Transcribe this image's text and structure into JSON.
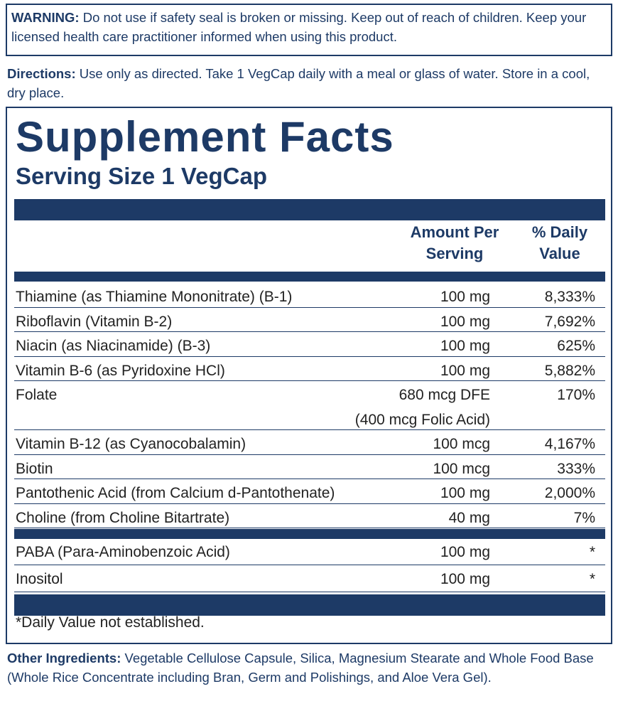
{
  "warning": {
    "label": "WARNING:",
    "text": "Do not use if safety seal is broken or missing. Keep out of reach of children. Keep your licensed health care practitioner informed when using this product."
  },
  "directions": {
    "label": "Directions:",
    "text": "Use only as directed. Take 1 VegCap daily with a meal or glass of water. Store in a cool, dry place."
  },
  "facts": {
    "title": "Supplement Facts",
    "serving_size": "Serving Size 1 VegCap",
    "headers": {
      "amount": "Amount Per Serving",
      "daily_value": "% Daily Value"
    },
    "rows": [
      {
        "name": "Thiamine (as Thiamine Mononitrate) (B-1)",
        "amount": "100 mg",
        "daily_value": "8,333%"
      },
      {
        "name": "Riboflavin (Vitamin B-2)",
        "amount": "100 mg",
        "daily_value": "7,692%"
      },
      {
        "name": "Niacin (as Niacinamide) (B-3)",
        "amount": "100 mg",
        "daily_value": "625%"
      },
      {
        "name": "Vitamin B-6 (as Pyridoxine HCl)",
        "amount": "100 mg",
        "daily_value": "5,882%"
      },
      {
        "name": "Folate",
        "amount": "680 mcg DFE",
        "amount_note": "(400 mcg Folic Acid)",
        "daily_value": "170%"
      },
      {
        "name": "Vitamin B-12 (as Cyanocobalamin)",
        "amount": "100 mcg",
        "daily_value": "4,167%"
      },
      {
        "name": "Biotin",
        "amount": "100 mcg",
        "daily_value": "333%"
      },
      {
        "name": "Pantothenic Acid (from Calcium d-Pantothenate)",
        "amount": "100 mg",
        "daily_value": "2,000%"
      },
      {
        "name": "Choline (from Choline Bitartrate)",
        "amount": "40 mg",
        "daily_value": "7%"
      }
    ],
    "other_rows": [
      {
        "name": "PABA (Para-Aminobenzoic Acid)",
        "amount": "100 mg",
        "daily_value": "*"
      },
      {
        "name": "Inositol",
        "amount": "100 mg",
        "daily_value": "*"
      }
    ],
    "footnote": "*Daily Value not established."
  },
  "other_ingredients": {
    "label": "Other Ingredients:",
    "text": "Vegetable Cellulose Capsule, Silica, Magnesium Stearate and Whole Food Base (Whole Rice Concentrate including Bran, Germ and Polishings, and Aloe Vera Gel)."
  }
}
